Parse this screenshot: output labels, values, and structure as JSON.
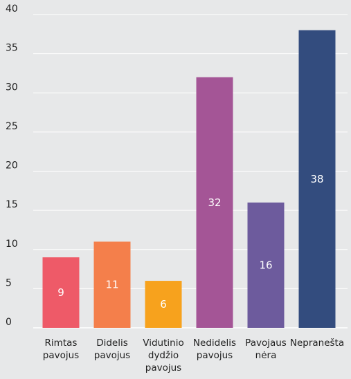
{
  "chart_data": {
    "type": "bar",
    "categories": [
      [
        "Rimtas",
        "pavojus"
      ],
      [
        "Didelis",
        "pavojus"
      ],
      [
        "Vidutinio",
        "dydžio",
        "pavojus"
      ],
      [
        "Nedidelis",
        "pavojus"
      ],
      [
        "Pavojaus",
        "nėra"
      ],
      [
        "Nepranešta"
      ]
    ],
    "values": [
      9,
      11,
      6,
      32,
      16,
      38
    ],
    "data_labels": [
      "9",
      "11",
      "6",
      "32",
      "16",
      "38"
    ],
    "colors": [
      "#ee5a68",
      "#f47f4b",
      "#f7a21d",
      "#a45596",
      "#6d5b9d",
      "#334c7e"
    ],
    "y_ticks": [
      "0",
      "5",
      "10",
      "15",
      "20",
      "25",
      "30",
      "35",
      "40"
    ],
    "ylim": [
      0,
      40
    ],
    "grid": true,
    "legend": "none",
    "title": "",
    "xlabel": "",
    "ylabel": ""
  }
}
